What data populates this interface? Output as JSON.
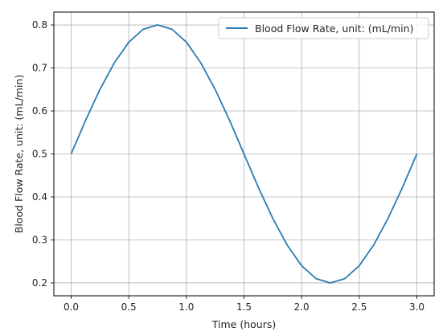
{
  "chart_data": {
    "type": "line",
    "title": "",
    "xlabel": "Time (hours)",
    "ylabel": "Blood Flow Rate, unit: (mL/min)",
    "xlim": [
      -0.15,
      3.15
    ],
    "ylim": [
      0.17,
      0.83
    ],
    "x_ticks": [
      0.0,
      0.5,
      1.0,
      1.5,
      2.0,
      2.5,
      3.0
    ],
    "x_tick_labels": [
      "0.0",
      "0.5",
      "1.0",
      "1.5",
      "2.0",
      "2.5",
      "3.0"
    ],
    "y_ticks": [
      0.2,
      0.3,
      0.4,
      0.5,
      0.6,
      0.7,
      0.8
    ],
    "y_tick_labels": [
      "0.2",
      "0.3",
      "0.4",
      "0.5",
      "0.6",
      "0.7",
      "0.8"
    ],
    "grid": true,
    "legend_position": "top-right",
    "series": [
      {
        "name": "Blood Flow Rate, unit: (mL/min)",
        "color": "#2e7bb0",
        "x": [
          0.0,
          0.125,
          0.25,
          0.375,
          0.5,
          0.625,
          0.75,
          0.875,
          1.0,
          1.125,
          1.25,
          1.375,
          1.5,
          1.625,
          1.75,
          1.875,
          2.0,
          2.125,
          2.25,
          2.375,
          2.5,
          2.625,
          2.75,
          2.875,
          3.0
        ],
        "y": [
          0.5,
          0.578,
          0.65,
          0.712,
          0.76,
          0.79,
          0.8,
          0.79,
          0.76,
          0.712,
          0.65,
          0.578,
          0.5,
          0.422,
          0.35,
          0.288,
          0.24,
          0.21,
          0.2,
          0.21,
          0.24,
          0.288,
          0.35,
          0.422,
          0.5
        ]
      }
    ]
  }
}
